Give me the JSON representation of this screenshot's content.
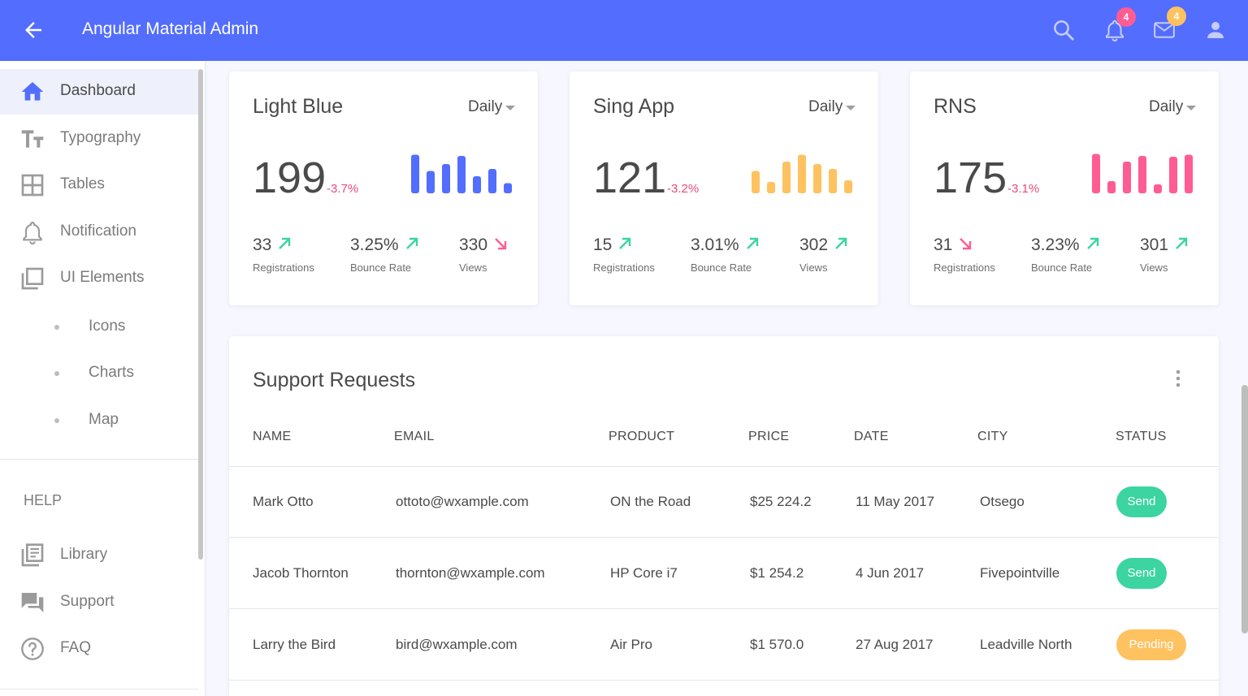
{
  "header": {
    "title": "Angular Material Admin",
    "notifications_badge": "4",
    "messages_badge": "4",
    "icons": [
      "back-arrow-icon",
      "search-icon",
      "bell-icon",
      "mail-icon",
      "user-icon"
    ]
  },
  "sidebar": {
    "items": [
      {
        "label": "Dashboard",
        "icon": "home-icon"
      },
      {
        "label": "Typography",
        "icon": "typography-icon"
      },
      {
        "label": "Tables",
        "icon": "table-icon"
      },
      {
        "label": "Notification",
        "icon": "bell-icon"
      },
      {
        "label": "UI Elements",
        "icon": "layers-icon"
      }
    ],
    "sub_items": [
      "Icons",
      "Charts",
      "Map"
    ],
    "help_label": "HELP",
    "help_items": [
      {
        "label": "Library",
        "icon": "library-icon"
      },
      {
        "label": "Support",
        "icon": "chat-icon"
      },
      {
        "label": "FAQ",
        "icon": "help-circle-icon"
      }
    ]
  },
  "cards": [
    {
      "title": "Light Blue",
      "period": "Daily",
      "value": "199",
      "change": "-3.7%",
      "color": "#536DFE",
      "bars": [
        0.95,
        0.55,
        0.72,
        0.92,
        0.42,
        0.6,
        0.25
      ],
      "metrics": [
        {
          "value": "33",
          "label": "Registrations",
          "trend": "up"
        },
        {
          "value": "3.25%",
          "label": "Bounce Rate",
          "trend": "up"
        },
        {
          "value": "330",
          "label": "Views",
          "trend": "down"
        }
      ]
    },
    {
      "title": "Sing App",
      "period": "Daily",
      "value": "121",
      "change": "-3.2%",
      "color": "#FFC260",
      "bars": [
        0.55,
        0.28,
        0.78,
        0.95,
        0.72,
        0.6,
        0.32
      ],
      "metrics": [
        {
          "value": "15",
          "label": "Registrations",
          "trend": "up"
        },
        {
          "value": "3.01%",
          "label": "Bounce Rate",
          "trend": "up"
        },
        {
          "value": "302",
          "label": "Views",
          "trend": "up"
        }
      ]
    },
    {
      "title": "RNS",
      "period": "Daily",
      "value": "175",
      "change": "-3.1%",
      "color": "#FF5C93",
      "bars": [
        0.97,
        0.3,
        0.78,
        0.92,
        0.22,
        0.9,
        0.95
      ],
      "metrics": [
        {
          "value": "31",
          "label": "Registrations",
          "trend": "down"
        },
        {
          "value": "3.23%",
          "label": "Bounce Rate",
          "trend": "up"
        },
        {
          "value": "301",
          "label": "Views",
          "trend": "up"
        }
      ]
    }
  ],
  "colors": {
    "up": "#3CD4A0",
    "down": "#FF5C93",
    "send": "#3CD4A0",
    "pending": "#FFC260"
  },
  "support": {
    "title": "Support Requests",
    "columns": [
      "NAME",
      "EMAIL",
      "PRODUCT",
      "PRICE",
      "DATE",
      "CITY",
      "STATUS"
    ],
    "rows": [
      {
        "name": "Mark Otto",
        "email": "ottoto@wxample.com",
        "product": "ON the Road",
        "price": "$25 224.2",
        "date": "11 May 2017",
        "city": "Otsego",
        "status": "Send"
      },
      {
        "name": "Jacob Thornton",
        "email": "thornton@wxample.com",
        "product": "HP Core i7",
        "price": "$1 254.2",
        "date": "4 Jun 2017",
        "city": "Fivepointville",
        "status": "Send"
      },
      {
        "name": "Larry the Bird",
        "email": "bird@wxample.com",
        "product": "Air Pro",
        "price": "$1 570.0",
        "date": "27 Aug 2017",
        "city": "Leadville North",
        "status": "Pending"
      }
    ]
  }
}
